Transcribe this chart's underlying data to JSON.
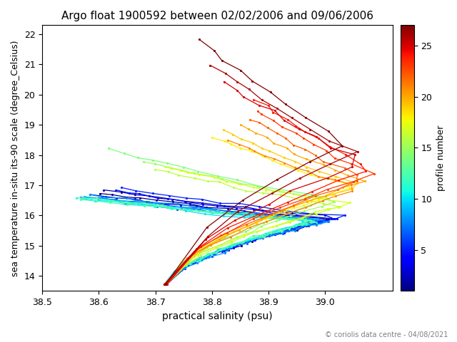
{
  "title": "Argo float 1900592 between 02/02/2006 and 09/06/2006",
  "xlabel": "practical salinity (psu)",
  "ylabel": "sea temperature in-situ its-90 scale (degree_Celsius)",
  "xlim": [
    38.5,
    39.12
  ],
  "ylim": [
    13.5,
    22.3
  ],
  "xticks": [
    38.5,
    38.6,
    38.7,
    38.8,
    38.9,
    39.0
  ],
  "yticks": [
    14,
    15,
    16,
    17,
    18,
    19,
    20,
    21,
    22
  ],
  "colorbar_label": "profile number",
  "colorbar_ticks": [
    5,
    10,
    15,
    20,
    25
  ],
  "n_profiles": 27,
  "copyright": "© coriolis data centre - 04/08/2021",
  "cmap": "jet",
  "profiles": [
    {
      "num": 1,
      "T_deep": 13.72,
      "S_deep": 38.718,
      "T_surf": 16.75,
      "S_surf": 38.6,
      "S_max": 39.02,
      "S_peak": 0.55,
      "n_pts": 28,
      "seed": 1
    },
    {
      "num": 2,
      "T_deep": 13.73,
      "S_deep": 38.72,
      "T_surf": 16.85,
      "S_surf": 38.61,
      "S_max": 39.03,
      "S_peak": 0.55,
      "n_pts": 26,
      "seed": 2
    },
    {
      "num": 3,
      "T_deep": 13.71,
      "S_deep": 38.715,
      "T_surf": 16.7,
      "S_surf": 38.59,
      "S_max": 39.01,
      "S_peak": 0.56,
      "n_pts": 30,
      "seed": 3
    },
    {
      "num": 4,
      "T_deep": 13.72,
      "S_deep": 38.719,
      "T_surf": 16.8,
      "S_surf": 38.63,
      "S_max": 39.02,
      "S_peak": 0.54,
      "n_pts": 27,
      "seed": 4
    },
    {
      "num": 5,
      "T_deep": 13.73,
      "S_deep": 38.721,
      "T_surf": 16.9,
      "S_surf": 38.64,
      "S_max": 39.04,
      "S_peak": 0.55,
      "n_pts": 25,
      "seed": 5
    },
    {
      "num": 6,
      "T_deep": 13.71,
      "S_deep": 38.716,
      "T_surf": 16.6,
      "S_surf": 38.57,
      "S_max": 39.0,
      "S_peak": 0.57,
      "n_pts": 29,
      "seed": 6
    },
    {
      "num": 7,
      "T_deep": 13.72,
      "S_deep": 38.718,
      "T_surf": 16.65,
      "S_surf": 38.58,
      "S_max": 39.01,
      "S_peak": 0.56,
      "n_pts": 28,
      "seed": 7
    },
    {
      "num": 8,
      "T_deep": 13.73,
      "S_deep": 38.72,
      "T_surf": 16.7,
      "S_surf": 38.59,
      "S_max": 39.02,
      "S_peak": 0.55,
      "n_pts": 26,
      "seed": 8
    },
    {
      "num": 9,
      "T_deep": 13.72,
      "S_deep": 38.717,
      "T_surf": 16.62,
      "S_surf": 38.58,
      "S_max": 38.99,
      "S_peak": 0.58,
      "n_pts": 27,
      "seed": 9
    },
    {
      "num": 10,
      "T_deep": 13.71,
      "S_deep": 38.715,
      "T_surf": 16.55,
      "S_surf": 38.57,
      "S_max": 38.98,
      "S_peak": 0.58,
      "n_pts": 30,
      "seed": 10
    },
    {
      "num": 11,
      "T_deep": 13.72,
      "S_deep": 38.718,
      "T_surf": 16.6,
      "S_surf": 38.56,
      "S_max": 38.99,
      "S_peak": 0.57,
      "n_pts": 28,
      "seed": 11
    },
    {
      "num": 12,
      "T_deep": 13.73,
      "S_deep": 38.72,
      "T_surf": 16.58,
      "S_surf": 38.57,
      "S_max": 38.98,
      "S_peak": 0.58,
      "n_pts": 29,
      "seed": 12
    },
    {
      "num": 13,
      "T_deep": 13.71,
      "S_deep": 38.716,
      "T_surf": 16.62,
      "S_surf": 38.57,
      "S_max": 38.99,
      "S_peak": 0.57,
      "n_pts": 27,
      "seed": 13
    },
    {
      "num": 14,
      "T_deep": 13.72,
      "S_deep": 38.718,
      "T_surf": 18.2,
      "S_surf": 38.62,
      "S_max": 39.02,
      "S_peak": 0.45,
      "n_pts": 22,
      "seed": 14
    },
    {
      "num": 15,
      "T_deep": 13.72,
      "S_deep": 38.719,
      "T_surf": 17.8,
      "S_surf": 38.68,
      "S_max": 39.03,
      "S_peak": 0.5,
      "n_pts": 24,
      "seed": 15
    },
    {
      "num": 16,
      "T_deep": 13.73,
      "S_deep": 38.72,
      "T_surf": 17.5,
      "S_surf": 38.7,
      "S_max": 39.04,
      "S_peak": 0.52,
      "n_pts": 25,
      "seed": 16
    },
    {
      "num": 17,
      "T_deep": 13.71,
      "S_deep": 38.715,
      "T_surf": 17.6,
      "S_surf": 38.72,
      "S_max": 39.05,
      "S_peak": 0.52,
      "n_pts": 26,
      "seed": 17
    },
    {
      "num": 18,
      "T_deep": 13.72,
      "S_deep": 38.718,
      "T_surf": 18.6,
      "S_surf": 38.8,
      "S_max": 39.06,
      "S_peak": 0.48,
      "n_pts": 23,
      "seed": 18
    },
    {
      "num": 19,
      "T_deep": 13.73,
      "S_deep": 38.721,
      "T_surf": 18.8,
      "S_surf": 38.82,
      "S_max": 39.07,
      "S_peak": 0.47,
      "n_pts": 22,
      "seed": 19
    },
    {
      "num": 20,
      "T_deep": 13.71,
      "S_deep": 38.716,
      "T_surf": 19.0,
      "S_surf": 38.85,
      "S_max": 39.08,
      "S_peak": 0.46,
      "n_pts": 21,
      "seed": 20
    },
    {
      "num": 21,
      "T_deep": 13.72,
      "S_deep": 38.718,
      "T_surf": 18.5,
      "S_surf": 38.83,
      "S_max": 39.07,
      "S_peak": 0.48,
      "n_pts": 23,
      "seed": 21
    },
    {
      "num": 22,
      "T_deep": 13.73,
      "S_deep": 38.72,
      "T_surf": 19.2,
      "S_surf": 38.87,
      "S_max": 39.08,
      "S_peak": 0.45,
      "n_pts": 20,
      "seed": 22
    },
    {
      "num": 23,
      "T_deep": 13.71,
      "S_deep": 38.715,
      "T_surf": 19.5,
      "S_surf": 38.88,
      "S_max": 39.09,
      "S_peak": 0.44,
      "n_pts": 19,
      "seed": 23
    },
    {
      "num": 24,
      "T_deep": 13.72,
      "S_deep": 38.718,
      "T_surf": 19.8,
      "S_surf": 38.88,
      "S_max": 39.09,
      "S_peak": 0.44,
      "n_pts": 18,
      "seed": 24
    },
    {
      "num": 25,
      "T_deep": 13.73,
      "S_deep": 38.721,
      "T_surf": 20.4,
      "S_surf": 38.82,
      "S_max": 39.08,
      "S_peak": 0.42,
      "n_pts": 17,
      "seed": 25
    },
    {
      "num": 26,
      "T_deep": 13.71,
      "S_deep": 38.716,
      "T_surf": 21.0,
      "S_surf": 38.8,
      "S_max": 39.06,
      "S_peak": 0.4,
      "n_pts": 16,
      "seed": 26
    },
    {
      "num": 27,
      "T_deep": 13.72,
      "S_deep": 38.718,
      "T_surf": 21.8,
      "S_surf": 38.78,
      "S_max": 39.05,
      "S_peak": 0.38,
      "n_pts": 15,
      "seed": 27
    }
  ]
}
